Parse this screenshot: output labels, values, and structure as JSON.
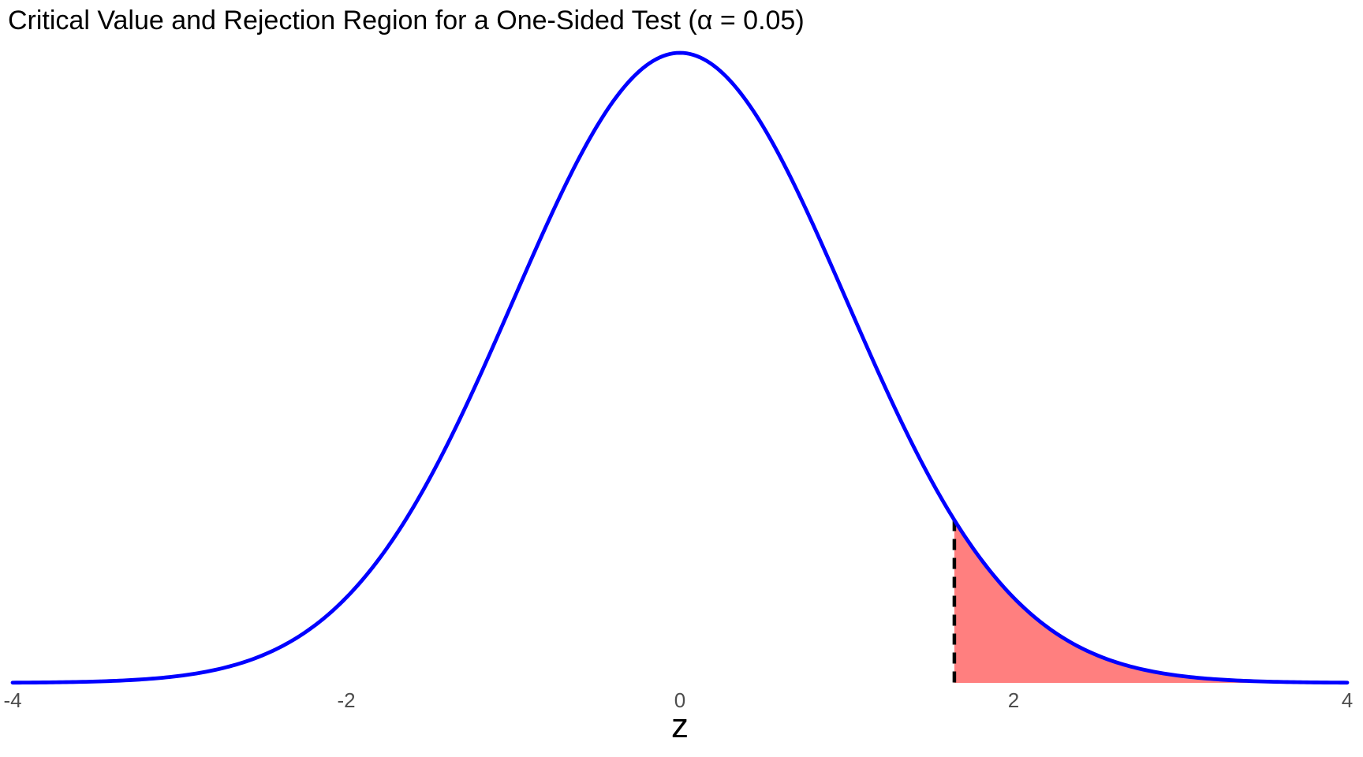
{
  "chart_data": {
    "type": "area",
    "title": "Critical Value and Rejection Region for a One-Sided Test (α = 0.05)",
    "xlabel": "z",
    "distribution": "standard normal density N(0,1)",
    "x_range": [
      -4,
      4
    ],
    "x_ticks": [
      {
        "value": -4,
        "label": "-4"
      },
      {
        "value": -2,
        "label": "-2"
      },
      {
        "value": 0,
        "label": "0"
      },
      {
        "value": 2,
        "label": "2"
      },
      {
        "value": 4,
        "label": "4"
      }
    ],
    "ylim": [
      0,
      0.3989
    ],
    "peak_density": 0.3989,
    "alpha": 0.05,
    "critical_value": 1.645,
    "shaded_region": "right tail under curve for z ≥ 1.645",
    "grid": false,
    "legend": "none",
    "y_axis": "hidden",
    "colors": {
      "curve": "#0000FF",
      "rejection_fill": "rgba(255,0,0,0.5)",
      "critical_line": "#000000",
      "tick_text": "#4D4D4D",
      "title_text": "#000000"
    },
    "critical_line_style": "dashed"
  }
}
